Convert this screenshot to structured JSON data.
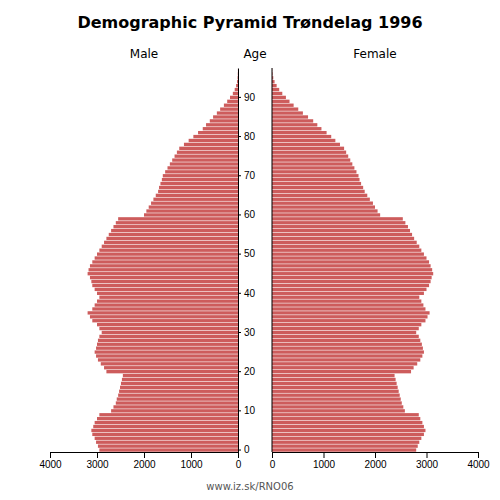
{
  "chart_data": {
    "type": "bar",
    "orientation": "horizontal",
    "title": "Demographic Pyramid Trøndelag 1996",
    "ylabel": "Age",
    "annotations": [
      "www.iz.sk/RNO06"
    ],
    "categories": [
      "0",
      null,
      null,
      null,
      null,
      null,
      null,
      null,
      null,
      null,
      "10",
      null,
      null,
      null,
      null,
      null,
      null,
      null,
      null,
      null,
      "20",
      null,
      null,
      null,
      null,
      null,
      null,
      null,
      null,
      null,
      "30",
      null,
      null,
      null,
      null,
      null,
      null,
      null,
      null,
      null,
      "40",
      null,
      null,
      null,
      null,
      null,
      null,
      null,
      null,
      null,
      "50",
      null,
      null,
      null,
      null,
      null,
      null,
      null,
      null,
      null,
      "60",
      null,
      null,
      null,
      null,
      null,
      null,
      null,
      null,
      null,
      "70",
      null,
      null,
      null,
      null,
      null,
      null,
      null,
      null,
      null,
      "80",
      null,
      null,
      null,
      null,
      null,
      null,
      null,
      null,
      null,
      "90",
      null,
      null,
      null,
      null,
      null,
      null,
      null
    ],
    "series": [
      {
        "name": "Male",
        "color": "#CD5C5C",
        "values": [
          2950,
          2980,
          3020,
          3050,
          3100,
          3120,
          3080,
          3050,
          3000,
          2950,
          2700,
          2650,
          2600,
          2580,
          2550,
          2530,
          2510,
          2490,
          2470,
          2450,
          2800,
          2850,
          2920,
          2980,
          3020,
          3050,
          3020,
          3000,
          2980,
          2950,
          2900,
          2950,
          3000,
          3100,
          3150,
          3200,
          3100,
          3050,
          3000,
          2950,
          3000,
          3050,
          3100,
          3120,
          3150,
          3200,
          3180,
          3150,
          3100,
          3050,
          3000,
          2950,
          2900,
          2850,
          2800,
          2750,
          2700,
          2650,
          2600,
          2550,
          2000,
          1950,
          1900,
          1850,
          1800,
          1750,
          1700,
          1680,
          1650,
          1620,
          1600,
          1550,
          1500,
          1450,
          1400,
          1350,
          1300,
          1250,
          1150,
          1050,
          950,
          850,
          750,
          680,
          600,
          530,
          450,
          380,
          300,
          230,
          170,
          110,
          70,
          40,
          20,
          10,
          5,
          2
        ]
      },
      {
        "name": "Female",
        "color": "#CD5C5C",
        "values": [
          2800,
          2830,
          2860,
          2900,
          2950,
          2980,
          2950,
          2920,
          2880,
          2850,
          2580,
          2550,
          2520,
          2500,
          2480,
          2460,
          2440,
          2420,
          2400,
          2380,
          2700,
          2750,
          2820,
          2880,
          2920,
          2950,
          2930,
          2910,
          2880,
          2850,
          2800,
          2850,
          2900,
          2980,
          3020,
          3060,
          2980,
          2940,
          2900,
          2860,
          2950,
          3000,
          3050,
          3080,
          3100,
          3130,
          3110,
          3080,
          3050,
          3000,
          2950,
          2900,
          2860,
          2810,
          2760,
          2720,
          2680,
          2640,
          2590,
          2540,
          2100,
          2050,
          2000,
          1960,
          1900,
          1850,
          1800,
          1770,
          1730,
          1700,
          1680,
          1640,
          1600,
          1560,
          1520,
          1480,
          1440,
          1400,
          1320,
          1230,
          1150,
          1060,
          960,
          880,
          800,
          700,
          600,
          510,
          420,
          340,
          270,
          200,
          140,
          90,
          50,
          25,
          12,
          5
        ]
      }
    ],
    "xlim": [
      0,
      4000
    ],
    "xticks": [
      0,
      1000,
      2000,
      3000,
      4000
    ]
  }
}
